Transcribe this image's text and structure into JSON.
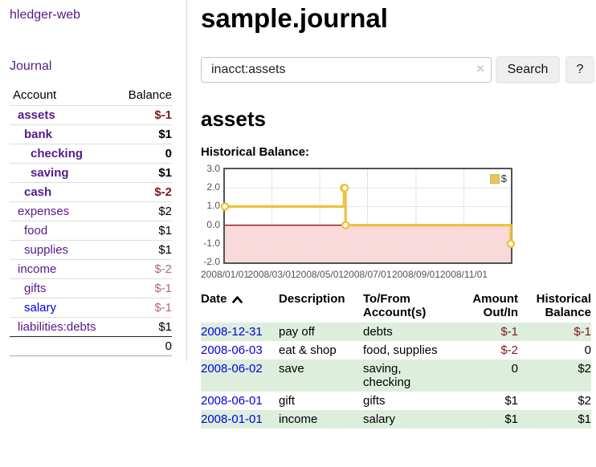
{
  "sidebar": {
    "app_title": "hledger-web",
    "journal_label": "Journal",
    "accounts_table": {
      "headers": {
        "account": "Account",
        "balance": "Balance"
      },
      "rows": [
        {
          "name": "assets",
          "indent": 1,
          "bold": true,
          "color": "purple",
          "balance": "$-1",
          "balance_class": "neg-strong"
        },
        {
          "name": "bank",
          "indent": 2,
          "bold": true,
          "color": "purple",
          "balance": "$1",
          "balance_class": "strong"
        },
        {
          "name": "checking",
          "indent": 3,
          "bold": true,
          "color": "purple",
          "balance": "0",
          "balance_class": "strong"
        },
        {
          "name": "saving",
          "indent": 3,
          "bold": true,
          "color": "purple",
          "balance": "$1",
          "balance_class": "strong"
        },
        {
          "name": "cash",
          "indent": 2,
          "bold": true,
          "color": "purple",
          "balance": "$-2",
          "balance_class": "neg-strong"
        },
        {
          "name": "expenses",
          "indent": 1,
          "bold": false,
          "color": "purple",
          "balance": "$2",
          "balance_class": ""
        },
        {
          "name": "food",
          "indent": 2,
          "bold": false,
          "color": "purple",
          "balance": "$1",
          "balance_class": ""
        },
        {
          "name": "supplies",
          "indent": 2,
          "bold": false,
          "color": "purple",
          "balance": "$1",
          "balance_class": ""
        },
        {
          "name": "income",
          "indent": 1,
          "bold": false,
          "color": "purple",
          "balance": "$-2",
          "balance_class": "neg-muted"
        },
        {
          "name": "gifts",
          "indent": 2,
          "bold": false,
          "color": "purple",
          "balance": "$-1",
          "balance_class": "neg-muted"
        },
        {
          "name": "salary",
          "indent": 2,
          "bold": false,
          "color": "blue",
          "balance": "$-1",
          "balance_class": "neg-muted"
        },
        {
          "name": "liabilities:debts",
          "indent": 1,
          "bold": false,
          "color": "purple",
          "balance": "$1",
          "balance_class": ""
        }
      ],
      "total": "0"
    }
  },
  "header": {
    "title": "sample.journal"
  },
  "search": {
    "query": "inacct:assets",
    "clear_icon": "×",
    "search_button": "Search",
    "help_button": "?"
  },
  "account_page": {
    "heading": "assets"
  },
  "chart_data": {
    "type": "line",
    "title": "Historical Balance:",
    "step": true,
    "series": [
      {
        "name": "$",
        "color": "#edc240",
        "points": [
          [
            "2008/01/01",
            1
          ],
          [
            "2008/06/01",
            2
          ],
          [
            "2008/06/02",
            2
          ],
          [
            "2008/06/03",
            0
          ],
          [
            "2008/12/31",
            -1
          ]
        ]
      }
    ],
    "xrange": [
      "2008/01/01",
      "2008/12/31"
    ],
    "ylim": [
      -2,
      3
    ],
    "yticks": [
      "3.0",
      "2.0",
      "1.0",
      "0.0",
      "-1.0",
      "-2.0"
    ],
    "xticks": [
      "2008/01/01",
      "2008/03/01",
      "2008/05/01",
      "2008/07/01",
      "2008/09/01",
      "2008/11/01"
    ],
    "grid": true,
    "legend_position": "top-right",
    "colors": {
      "grid": "#e3e3e3",
      "frame": "#545454",
      "zero_line": "#8b0000",
      "negative_region": "#f9d9d9",
      "marker_fill": "#ffffff"
    }
  },
  "transactions": {
    "headers": {
      "date": "Date",
      "description": "Description",
      "account": "To/From Account(s)",
      "amount": "Amount Out/In",
      "balance": "Historical Balance"
    },
    "rows": [
      {
        "date": "2008-12-31",
        "description": "pay off",
        "account": "debts",
        "amount": "$-1",
        "amount_neg": true,
        "balance": "$-1",
        "balance_neg": true
      },
      {
        "date": "2008-06-03",
        "description": "eat & shop",
        "account": "food, supplies",
        "amount": "$-2",
        "amount_neg": true,
        "balance": "0",
        "balance_neg": false
      },
      {
        "date": "2008-06-02",
        "description": "save",
        "account": "saving, checking",
        "amount": "0",
        "amount_neg": false,
        "balance": "$2",
        "balance_neg": false
      },
      {
        "date": "2008-06-01",
        "description": "gift",
        "account": "gifts",
        "amount": "$1",
        "amount_neg": false,
        "balance": "$2",
        "balance_neg": false
      },
      {
        "date": "2008-01-01",
        "description": "income",
        "account": "salary",
        "amount": "$1",
        "amount_neg": false,
        "balance": "$1",
        "balance_neg": false
      }
    ]
  }
}
